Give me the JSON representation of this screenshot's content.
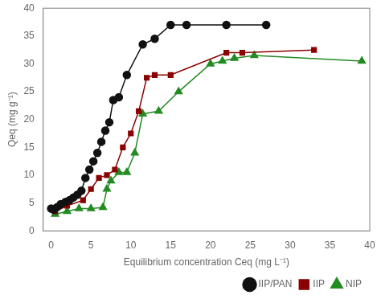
{
  "chart_data": {
    "type": "line",
    "xlabel": "Equilibrium concentration Ceq (mg L⁻¹)",
    "ylabel": "Qeq (mg g⁻¹)",
    "xlim": [
      -1,
      40
    ],
    "ylim": [
      0,
      40
    ],
    "xticks": [
      0,
      5,
      10,
      15,
      20,
      25,
      30,
      35,
      40
    ],
    "yticks": [
      0,
      5,
      10,
      15,
      20,
      25,
      30,
      35,
      40
    ],
    "grid": false,
    "legend": "lower right",
    "series": [
      {
        "name": "IIP/PAN",
        "color": "#111111",
        "marker": "circle",
        "x": [
          0.0,
          0.3,
          0.7,
          1.2,
          1.8,
          2.3,
          2.8,
          3.3,
          3.8,
          4.3,
          4.8,
          5.3,
          5.8,
          6.3,
          6.8,
          7.3,
          7.8,
          8.5,
          9.5,
          11.5,
          13.0,
          15.0,
          17.0,
          22.0,
          27.0
        ],
        "values": [
          4.0,
          3.8,
          4.2,
          4.8,
          5.2,
          5.5,
          6.0,
          6.5,
          7.2,
          9.5,
          11.0,
          12.5,
          14.0,
          16.0,
          18.0,
          19.5,
          23.5,
          24.0,
          28.0,
          33.5,
          34.5,
          37.0,
          37.0,
          37.0,
          37.0
        ]
      },
      {
        "name": "IIP",
        "color": "#8b0000",
        "marker": "square",
        "x": [
          0.5,
          2.0,
          4.0,
          5.0,
          6.0,
          7.0,
          8.0,
          9.0,
          10.0,
          11.0,
          12.0,
          13.0,
          15.0,
          22.0,
          24.0,
          33.0
        ],
        "values": [
          3.5,
          4.5,
          5.5,
          7.5,
          9.5,
          10.0,
          11.0,
          15.0,
          17.5,
          21.5,
          27.5,
          28.0,
          28.0,
          32.0,
          32.0,
          32.5
        ]
      },
      {
        "name": "NIP",
        "color": "#228B22",
        "marker": "triangle",
        "x": [
          0.5,
          2.0,
          3.5,
          5.0,
          6.5,
          7.0,
          7.5,
          8.5,
          9.5,
          10.5,
          11.5,
          13.5,
          16.0,
          20.0,
          21.5,
          23.0,
          25.5,
          39.0
        ],
        "values": [
          3.0,
          3.5,
          4.0,
          4.0,
          4.2,
          7.5,
          9.0,
          10.5,
          10.5,
          14.0,
          21.0,
          21.5,
          25.0,
          30.0,
          30.5,
          31.0,
          31.5,
          30.5
        ]
      }
    ]
  }
}
